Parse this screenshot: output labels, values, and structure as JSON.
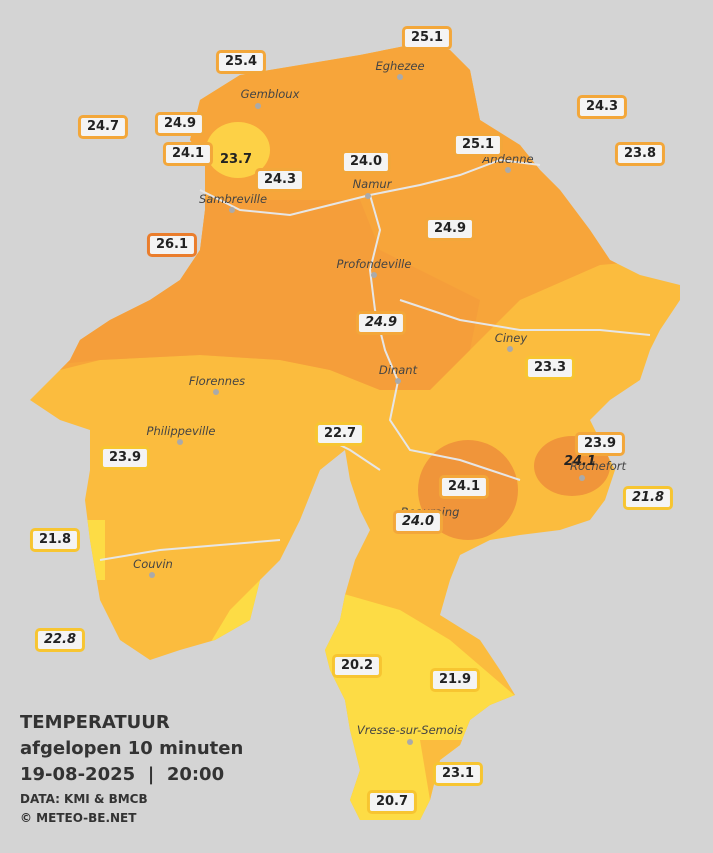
{
  "legend": {
    "title": "TEMPERATUUR",
    "subtitle": "afgelopen 10 minuten",
    "date": "19-08-2025",
    "separator": "|",
    "time": "20:00",
    "source": "DATA: KMI & BMCB",
    "credit": "© METEO-BE.NET"
  },
  "towns": [
    "Gembloux",
    "Eghezee",
    "Andenne",
    "Namur",
    "Sambreville",
    "Profondeville",
    "Ciney",
    "Florennes",
    "Dinant",
    "Philippeville",
    "Couvin",
    "Rochefort",
    "Beauraing",
    "Vresse-sur-Semois"
  ],
  "stations": [
    "25.1",
    "25.4",
    "24.7",
    "24.9",
    "24.1",
    "23.7",
    "24.3",
    "24.0",
    "25.1",
    "24.3",
    "23.8",
    "26.1",
    "24.9",
    "24.9",
    "23.3",
    "22.7",
    "23.9",
    "23.9",
    "24.1",
    "21.8",
    "24.1",
    "24.0",
    "21.8",
    "22.8",
    "20.2",
    "21.9",
    "23.1",
    "20.7"
  ]
}
